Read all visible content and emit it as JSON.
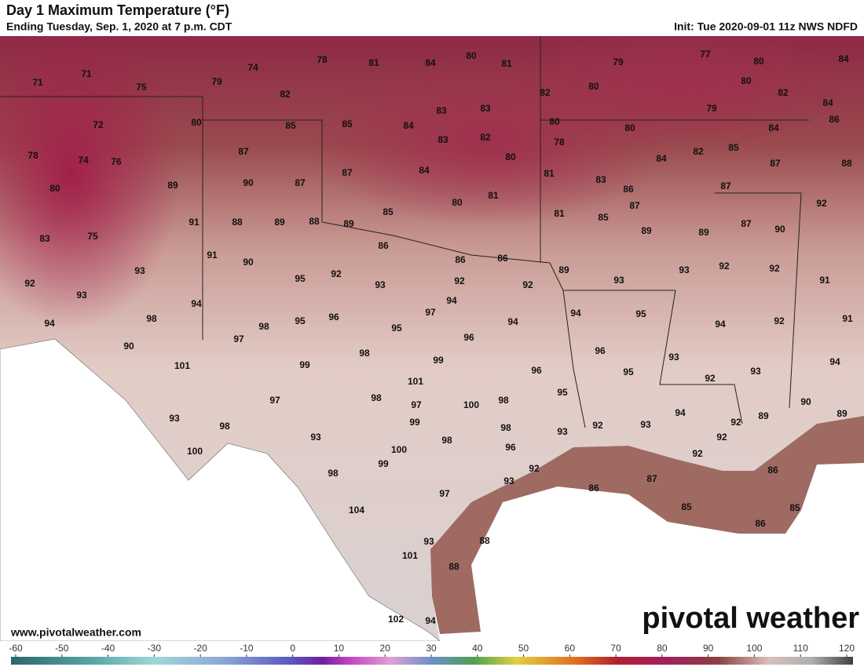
{
  "header": {
    "title": "Day 1 Maximum Temperature (°F)",
    "subtitle": "Ending Tuesday, Sep. 1, 2020 at 7 p.m. CDT",
    "init": "Init: Tue 2020-09-01 11z NWS NDFD"
  },
  "watermark": "www.pivotalweather.com",
  "logo": "pivotal weather",
  "map": {
    "labels": [
      71,
      71,
      75,
      79,
      74,
      78,
      81,
      84,
      80,
      81,
      79,
      77,
      80,
      84,
      82,
      82,
      80,
      80,
      82,
      84,
      80,
      72,
      85,
      85,
      84,
      83,
      83,
      80,
      80,
      79,
      84,
      86,
      78,
      74,
      76,
      87,
      83,
      82,
      78,
      80,
      84,
      82,
      85,
      87,
      88,
      80,
      89,
      90,
      87,
      87,
      84,
      80,
      81,
      81,
      83,
      86,
      87,
      87,
      92,
      91,
      88,
      89,
      88,
      89,
      85,
      81,
      85,
      89,
      89,
      87,
      90,
      83,
      75,
      91,
      90,
      86,
      86,
      86,
      89,
      93,
      93,
      92,
      92,
      91,
      92,
      93,
      95,
      92,
      93,
      92,
      92,
      93,
      94,
      94,
      94,
      98,
      98,
      95,
      96,
      97,
      95,
      94,
      94,
      95,
      94,
      92,
      91,
      90,
      97,
      98,
      96,
      96,
      93,
      101,
      99,
      99,
      96,
      95,
      93,
      94,
      101,
      97,
      98,
      97,
      100,
      98,
      95,
      92,
      90,
      99,
      98,
      93,
      92,
      93,
      94,
      92,
      89,
      89,
      93,
      98,
      93,
      98,
      100,
      100,
      96,
      92,
      92,
      92,
      99,
      98,
      87,
      86,
      93,
      86,
      97,
      104,
      85,
      85,
      86,
      93,
      88,
      101,
      88,
      102,
      94
    ]
  },
  "colorbar": {
    "ticks": [
      -60,
      -50,
      -40,
      -30,
      -20,
      -10,
      0,
      10,
      20,
      30,
      40,
      50,
      60,
      70,
      80,
      90,
      100,
      110,
      120
    ]
  }
}
